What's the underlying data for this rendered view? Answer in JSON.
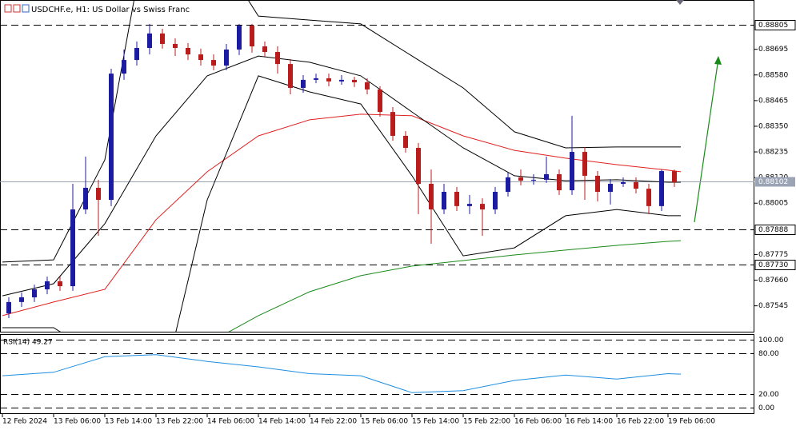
{
  "chart_data": {
    "type": "candlestick",
    "title": "USDCHF.e, H1:  US Dollar vs Swiss Franc",
    "up_color": "#1c1ca0",
    "down_color": "#b81c1c",
    "x": [
      1,
      3,
      5,
      7,
      9,
      11,
      13,
      15,
      17,
      19,
      21,
      23,
      25,
      27,
      29,
      31,
      33,
      35,
      37,
      39,
      41,
      43,
      45,
      47,
      49,
      51,
      53,
      55,
      57,
      59,
      61,
      63,
      65,
      67,
      69,
      71,
      73,
      75,
      77,
      79,
      81,
      83,
      85,
      87,
      89,
      91,
      93,
      95,
      97,
      99,
      101,
      103,
      105
    ],
    "open": [
      0.87511,
      0.87562,
      0.87583,
      0.87619,
      0.87655,
      0.87633,
      0.87977,
      0.88074,
      0.8802,
      0.88586,
      0.88647,
      0.88701,
      0.88766,
      0.88719,
      0.88701,
      0.88672,
      0.88647,
      0.88622,
      0.88694,
      0.88801,
      0.88708,
      0.88683,
      0.88629,
      0.88522,
      0.88558,
      0.88565,
      0.88551,
      0.88558,
      0.88547,
      0.88515,
      0.88414,
      0.88307,
      0.88253,
      0.88092,
      0.87977,
      0.88056,
      0.87992,
      0.88002,
      0.87977,
      0.88056,
      0.88121,
      0.88106,
      0.8811,
      0.88135,
      0.88063,
      0.88235,
      0.88128,
      0.88056,
      0.88092,
      0.88099,
      0.8807,
      0.87992,
      0.88149
    ],
    "high": [
      0.87583,
      0.87605,
      0.8764,
      0.87676,
      0.87676,
      0.88092,
      0.88214,
      0.8811,
      0.88608,
      0.88694,
      0.8873,
      0.88809,
      0.88787,
      0.88744,
      0.88723,
      0.88698,
      0.88672,
      0.88719,
      0.88809,
      0.88809,
      0.8873,
      0.88708,
      0.88651,
      0.88579,
      0.88586,
      0.88586,
      0.88579,
      0.88572,
      0.88565,
      0.88529,
      0.88436,
      0.88328,
      0.88275,
      0.88156,
      0.88092,
      0.88078,
      0.88042,
      0.88027,
      0.88078,
      0.88142,
      0.88156,
      0.88135,
      0.88214,
      0.88156,
      0.88397,
      0.88257,
      0.88149,
      0.88113,
      0.88121,
      0.88121,
      0.88092,
      0.88156,
      0.88156
    ],
    "low": [
      0.8749,
      0.8754,
      0.87562,
      0.87597,
      0.87612,
      0.87612,
      0.87956,
      0.87859,
      0.87992,
      0.88558,
      0.88622,
      0.88672,
      0.88698,
      0.88665,
      0.88647,
      0.88622,
      0.88601,
      0.88601,
      0.88669,
      0.8868,
      0.88662,
      0.88586,
      0.88493,
      0.885,
      0.88543,
      0.88529,
      0.88536,
      0.88526,
      0.88493,
      0.88393,
      0.88285,
      0.88232,
      0.87956,
      0.87823,
      0.87956,
      0.8797,
      0.87956,
      0.87859,
      0.87956,
      0.88035,
      0.88085,
      0.88088,
      0.88096,
      0.88042,
      0.88042,
      0.8802,
      0.88013,
      0.87999,
      0.88078,
      0.88049,
      0.87956,
      0.8797,
      0.88078
    ],
    "close": [
      0.87562,
      0.87583,
      0.87619,
      0.87655,
      0.87633,
      0.87977,
      0.88074,
      0.8802,
      0.88586,
      0.88647,
      0.88701,
      0.88766,
      0.88719,
      0.88701,
      0.88672,
      0.88647,
      0.88622,
      0.88694,
      0.88801,
      0.88708,
      0.88683,
      0.88629,
      0.88522,
      0.88558,
      0.88565,
      0.88551,
      0.88558,
      0.88547,
      0.88515,
      0.88414,
      0.88307,
      0.88253,
      0.88092,
      0.87977,
      0.88056,
      0.87992,
      0.88002,
      0.87977,
      0.88056,
      0.88121,
      0.88106,
      0.8811,
      0.88135,
      0.88063,
      0.88235,
      0.88128,
      0.88056,
      0.88092,
      0.88099,
      0.8807,
      0.87992,
      0.88149,
      0.88099
    ],
    "indicators": [
      {
        "color": "#e02020",
        "x": [
          0,
          8,
          16,
          24,
          32,
          40,
          48,
          56,
          64,
          72,
          80,
          88,
          96,
          104,
          106
        ],
        "values": [
          0.87501,
          0.87562,
          0.87619,
          0.87931,
          0.88146,
          0.88307,
          0.88379,
          0.88404,
          0.88397,
          0.88307,
          0.88242,
          0.88207,
          0.88178,
          0.88153,
          0.88146
        ]
      },
      {
        "color": "#000000",
        "x": [
          0,
          8,
          16,
          24,
          32,
          40,
          48,
          56,
          64,
          72,
          80,
          88,
          96,
          104,
          106
        ],
        "values": [
          0.87741,
          0.87751,
          0.88199,
          0.89454,
          0.89203,
          0.88844,
          0.88826,
          0.88809,
          0.88665,
          0.88522,
          0.88325,
          0.88253,
          0.88257,
          0.88257,
          0.88257
        ]
      },
      {
        "color": "#000000",
        "x": [
          0,
          8,
          16,
          24,
          32,
          40,
          48,
          56,
          64,
          72,
          80,
          88,
          96,
          104,
          106
        ],
        "values": [
          0.8759,
          0.87644,
          0.87913,
          0.88307,
          0.88576,
          0.88665,
          0.88637,
          0.88576,
          0.88414,
          0.88253,
          0.88128,
          0.88106,
          0.8811,
          0.88099,
          0.88099
        ]
      },
      {
        "color": "#000000",
        "x": [
          0,
          8,
          16,
          24,
          32,
          40,
          48,
          56,
          64,
          72,
          80,
          88,
          96,
          104,
          106
        ],
        "values": [
          0.87447,
          0.87447,
          0.87304,
          0.87053,
          0.8802,
          0.88576,
          0.88504,
          0.8845,
          0.88128,
          0.87769,
          0.87805,
          0.87949,
          0.87977,
          0.87949,
          0.87949
        ]
      },
      {
        "color": "#1a8a1a",
        "x": [
          32,
          40,
          48,
          56,
          64,
          72,
          80,
          88,
          96,
          104,
          106
        ],
        "values": [
          0.87375,
          0.87501,
          0.87608,
          0.8768,
          0.87723,
          0.87748,
          0.87773,
          0.87795,
          0.87816,
          0.87834,
          0.87837
        ]
      }
    ],
    "xlim": [
      -0.375,
      117.5
    ],
    "xticks": [
      {
        "value": 0,
        "label": "12 Feb 2024"
      },
      {
        "value": 8,
        "label": "13 Feb 06:00"
      },
      {
        "value": 16,
        "label": "13 Feb 14:00"
      },
      {
        "value": 24,
        "label": "13 Feb 22:00"
      },
      {
        "value": 32,
        "label": "14 Feb 06:00"
      },
      {
        "value": 40,
        "label": "14 Feb 14:00"
      },
      {
        "value": 48,
        "label": "14 Feb 22:00"
      },
      {
        "value": 56,
        "label": "15 Feb 06:00"
      },
      {
        "value": 64,
        "label": "15 Feb 14:00"
      },
      {
        "value": 72,
        "label": "15 Feb 22:00"
      },
      {
        "value": 80,
        "label": "16 Feb 06:00"
      },
      {
        "value": 88,
        "label": "16 Feb 14:00"
      },
      {
        "value": 96,
        "label": "16 Feb 22:00"
      },
      {
        "value": 104,
        "label": "19 Feb 06:00"
      }
    ],
    "ylim": [
      0.87429,
      0.88916
    ],
    "yticks": [
      {
        "value": 0.88695,
        "label": "0.88695"
      },
      {
        "value": 0.8858,
        "label": "0.88580"
      },
      {
        "value": 0.88465,
        "label": "0.88465"
      },
      {
        "value": 0.8835,
        "label": "0.88350"
      },
      {
        "value": 0.88235,
        "label": "0.88235"
      },
      {
        "value": 0.8812,
        "label": "0.88120"
      },
      {
        "value": 0.88005,
        "label": "0.88005"
      },
      {
        "value": 0.87775,
        "label": "0.87775"
      },
      {
        "value": 0.8766,
        "label": "0.87660"
      },
      {
        "value": 0.87545,
        "label": "0.87545"
      }
    ],
    "levels": [
      {
        "value": 0.88805,
        "label": "0.88805"
      },
      {
        "value": 0.87888,
        "label": "0.87888"
      },
      {
        "value": 0.8773,
        "label": "0.87730"
      }
    ],
    "current_price": {
      "value": 0.88102,
      "label": "0.88102"
    },
    "rsi": {
      "title": "RSI(14) 49.27",
      "color": "#1e8ee0",
      "ylim": [
        0,
        100
      ],
      "yticks": [
        {
          "value": 100,
          "label": "100.00"
        },
        {
          "value": 80,
          "label": "80.00"
        },
        {
          "value": 20,
          "label": "20.00"
        },
        {
          "value": 0,
          "label": "0.00"
        }
      ],
      "x": [
        0,
        8,
        16,
        24,
        32,
        40,
        48,
        56,
        64,
        72,
        80,
        88,
        96,
        104,
        106
      ],
      "values": [
        47,
        52,
        75,
        78,
        68,
        60,
        50,
        47,
        22,
        25,
        40,
        48,
        42,
        50,
        49.27
      ]
    }
  }
}
